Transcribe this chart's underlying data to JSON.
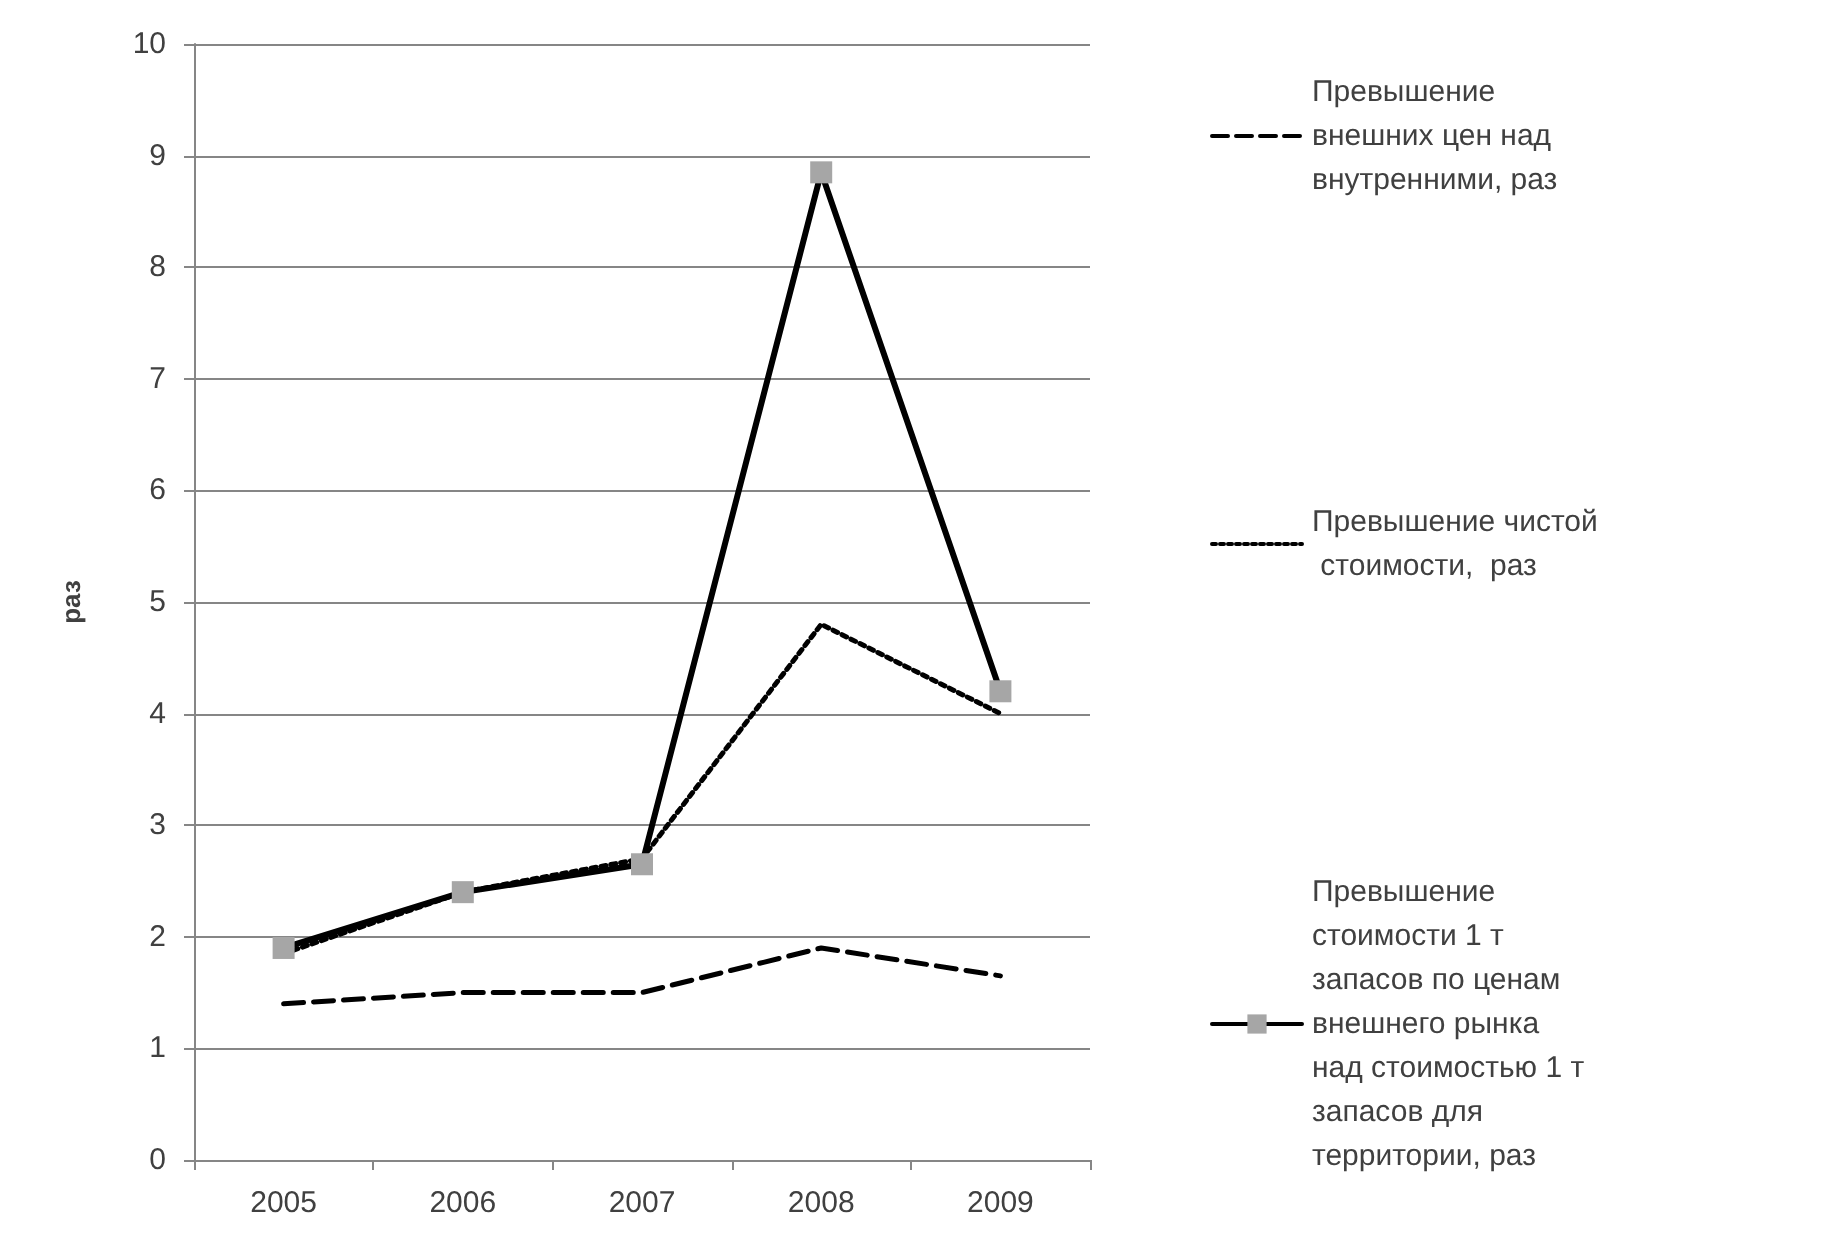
{
  "chart_data": {
    "type": "line",
    "ylabel": "раз",
    "categories": [
      "2005",
      "2006",
      "2007",
      "2008",
      "2009"
    ],
    "series": [
      {
        "name": "Превышение внешних цен над  внутренними, раз",
        "color": "#000000",
        "line_style": "dashed",
        "marker": "none",
        "values": [
          1.4,
          1.5,
          1.5,
          1.9,
          1.65
        ]
      },
      {
        "name": "Превышение чистой стоимости,  раз",
        "color": "#000000",
        "line_style": "dotted",
        "marker": "none",
        "values": [
          1.85,
          2.4,
          2.7,
          4.8,
          4.0
        ]
      },
      {
        "name": "Превышение стоимости 1 т запасов по ценам внешнего рынка над стоимостью 1 т запасов для территории, раз",
        "color": "#000000",
        "line_style": "solid",
        "marker": "square",
        "values": [
          1.9,
          2.4,
          2.65,
          8.85,
          4.2
        ]
      }
    ],
    "ylim": [
      0,
      10
    ],
    "yticks": [
      0,
      1,
      2,
      3,
      4,
      5,
      6,
      7,
      8,
      9,
      10
    ],
    "grid": "y",
    "legend": "right"
  }
}
